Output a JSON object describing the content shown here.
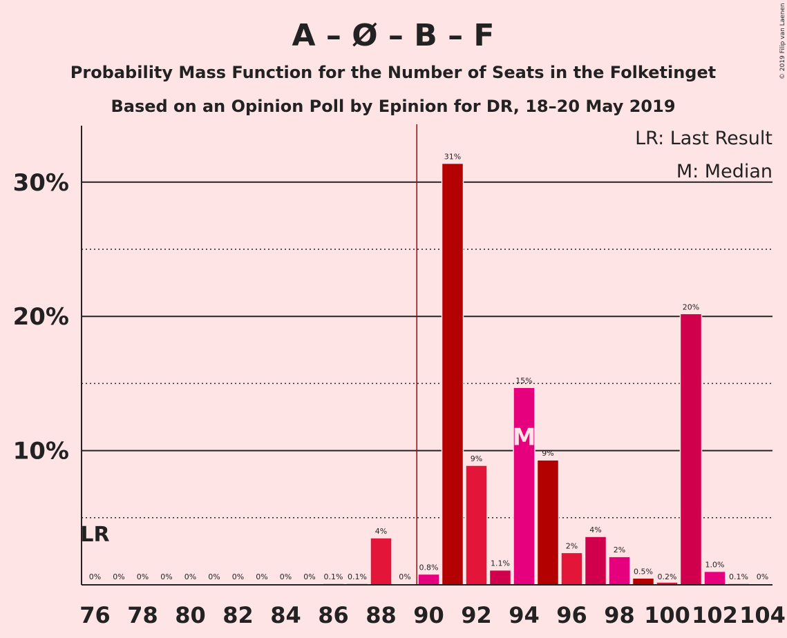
{
  "chart_data": {
    "type": "bar",
    "title": "A – Ø – B – F",
    "subtitle": "Probability Mass Function for the Number of Seats in the Folketinget",
    "subtitle2": "Based on an Opinion Poll by Epinion for DR, 18–20 May 2019",
    "copyright": "© 2019 Filip van Laenen",
    "legend": {
      "lr": "LR: Last Result",
      "median": "M: Median"
    },
    "lr_marker": "LR",
    "median_marker": "M",
    "last_result_seat": 76,
    "median_seat": 94,
    "majority_line_seat": 90,
    "x": [
      76,
      77,
      78,
      79,
      80,
      81,
      82,
      83,
      84,
      85,
      86,
      87,
      88,
      89,
      90,
      91,
      92,
      93,
      94,
      95,
      96,
      97,
      98,
      99,
      100,
      101,
      102,
      103,
      104
    ],
    "values": [
      0,
      0,
      0,
      0,
      0,
      0,
      0,
      0,
      0,
      0,
      0.1,
      0.1,
      3.5,
      0,
      0.8,
      31.4,
      8.9,
      1.1,
      14.7,
      9.3,
      2.4,
      3.6,
      2.1,
      0.5,
      0.2,
      20.2,
      1.0,
      0.1,
      0
    ],
    "labels": [
      "0%",
      "0%",
      "0%",
      "0%",
      "0%",
      "0%",
      "0%",
      "0%",
      "0%",
      "0%",
      "0.1%",
      "0.1%",
      "4%",
      "0%",
      "0.8%",
      "31%",
      "9%",
      "1.1%",
      "15%",
      "9%",
      "2%",
      "4%",
      "2%",
      "0.5%",
      "0.2%",
      "20%",
      "1.0%",
      "0.1%",
      "0%"
    ],
    "xticks": [
      76,
      78,
      80,
      82,
      84,
      86,
      88,
      90,
      92,
      94,
      96,
      98,
      100,
      102,
      104
    ],
    "yticks_major": [
      10,
      20,
      30
    ],
    "ytick_labels": [
      "10%",
      "20%",
      "30%"
    ],
    "yticks_minor": [
      5,
      15,
      25
    ],
    "ylim": [
      0,
      34
    ],
    "colors": {
      "background": "#ffe4e6",
      "A": "#e3163a",
      "O": "#b30000",
      "B": "#e6007e",
      "F": "#d1004c",
      "majority_line": "#b30000",
      "text": "#222222"
    },
    "bar_colors": [
      "#b30000",
      "#e3163a",
      "#e6007e",
      "#b30000",
      "#e3163a",
      "#d1004c",
      "#e6007e",
      "#b30000",
      "#e3163a",
      "#d1004c",
      "#e6007e",
      "#b30000",
      "#e3163a",
      "#d1004c",
      "#e6007e",
      "#b30000",
      "#e3163a",
      "#d1004c",
      "#e6007e",
      "#b30000",
      "#e3163a",
      "#d1004c",
      "#e6007e",
      "#b30000",
      "#e3163a",
      "#d1004c",
      "#e6007e",
      "#b30000",
      "#e3163a"
    ]
  }
}
